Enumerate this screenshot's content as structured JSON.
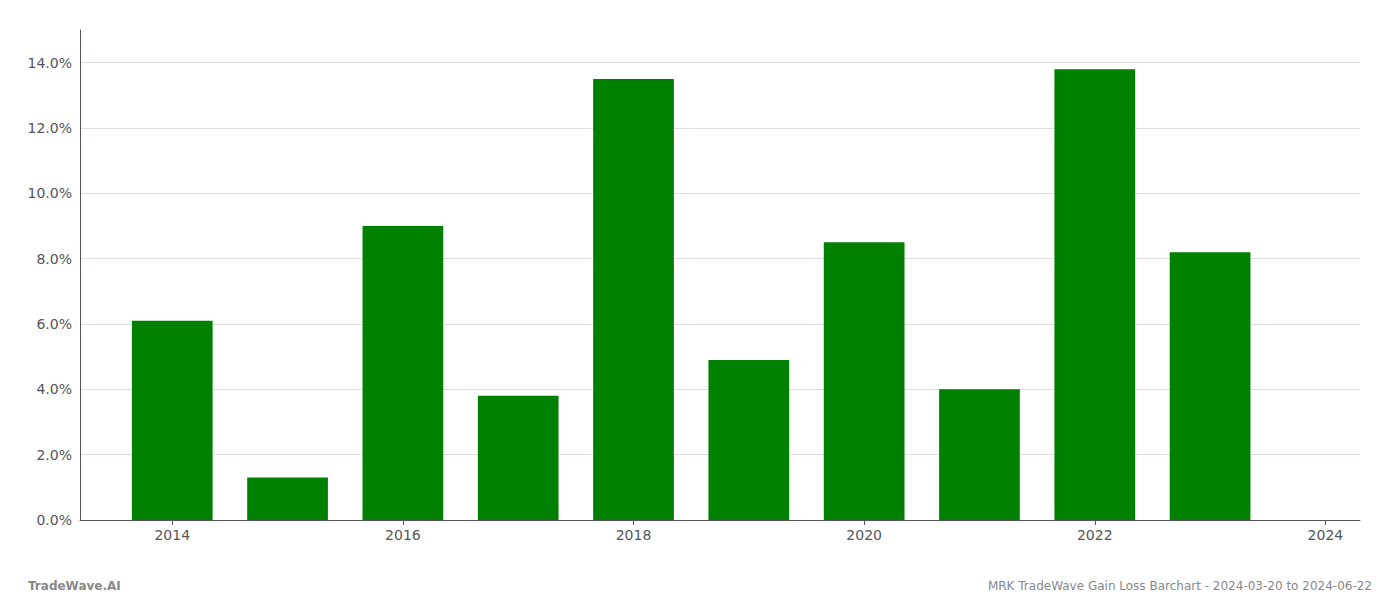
{
  "chart_data": {
    "type": "bar",
    "x": [
      2014,
      2015,
      2016,
      2017,
      2018,
      2019,
      2020,
      2021,
      2022,
      2023
    ],
    "values": [
      0.061,
      0.013,
      0.09,
      0.038,
      0.135,
      0.049,
      0.085,
      0.04,
      0.138,
      0.082
    ],
    "color": "#008000",
    "xlim": [
      2013.2,
      2024.3
    ],
    "xticks": [
      2014,
      2016,
      2018,
      2020,
      2022,
      2024
    ],
    "ylim": [
      0,
      0.15
    ],
    "yticks": [
      {
        "value": 0.0,
        "label": "0.0%"
      },
      {
        "value": 0.02,
        "label": "2.0%"
      },
      {
        "value": 0.04,
        "label": "4.0%"
      },
      {
        "value": 0.06,
        "label": "6.0%"
      },
      {
        "value": 0.08,
        "label": "8.0%"
      },
      {
        "value": 0.1,
        "label": "10.0%"
      },
      {
        "value": 0.12,
        "label": "12.0%"
      },
      {
        "value": 0.14,
        "label": "14.0%"
      }
    ],
    "grid": true,
    "annotations": [
      "TradeWave.AI",
      "MRK TradeWave Gain Loss Barchart - 2024-03-20 to 2024-06-22"
    ]
  }
}
